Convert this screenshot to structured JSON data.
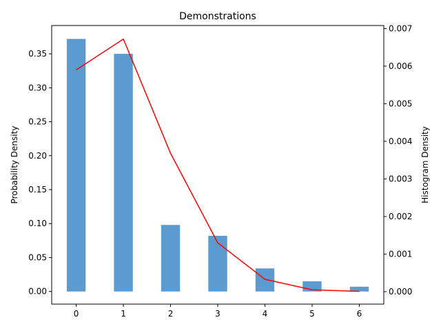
{
  "chart_data": {
    "type": "bar",
    "title": "Demonstrations",
    "x": [
      0,
      1,
      2,
      3,
      4,
      5,
      6
    ],
    "x_ticks": [
      "0",
      "1",
      "2",
      "3",
      "4",
      "5",
      "6"
    ],
    "xlim": [
      -0.52,
      6.52
    ],
    "ylabel_left": "Probability Density",
    "ylabel_right": "Histogram Density",
    "ylim_left": [
      -0.0186,
      0.3917
    ],
    "ylim_right": [
      -0.00033,
      0.00708
    ],
    "y_ticks_left": [
      "0.00",
      "0.05",
      "0.10",
      "0.15",
      "0.20",
      "0.25",
      "0.30",
      "0.35"
    ],
    "y_ticks_right": [
      "0.000",
      "0.001",
      "0.002",
      "0.003",
      "0.004",
      "0.005",
      "0.006",
      "0.007"
    ],
    "series": [
      {
        "type": "bar",
        "axis": "left",
        "color": "#5b9bd0",
        "values": [
          0.372,
          0.35,
          0.098,
          0.082,
          0.034,
          0.015,
          0.007
        ]
      },
      {
        "type": "line",
        "axis": "right",
        "color": "#ff0000",
        "values": [
          0.0059,
          0.00672,
          0.00368,
          0.0013,
          0.00033,
          5e-05,
          1e-05
        ]
      }
    ],
    "grid": false,
    "legend": "none"
  }
}
